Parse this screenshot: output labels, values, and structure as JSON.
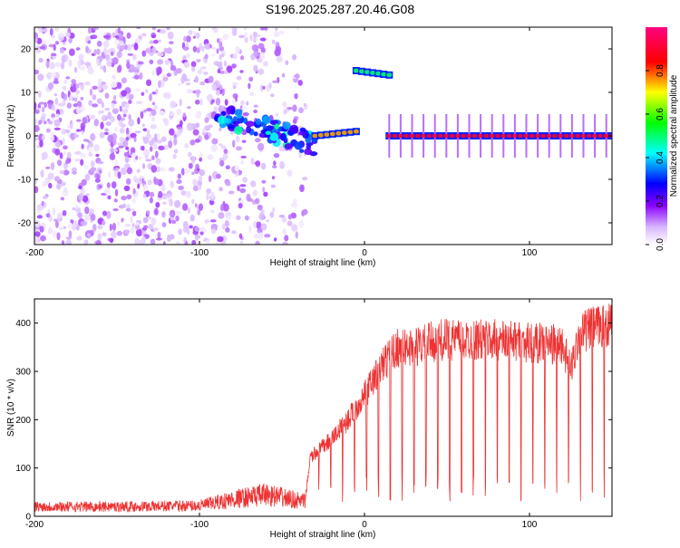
{
  "title": "S196.2025.287.20.46.G08",
  "chart_data": [
    {
      "type": "heatmap",
      "title": "S196.2025.287.20.46.G08",
      "xlabel": "Height of straight line (km)",
      "ylabel": "Frequency (Hz)",
      "xlim": [
        -200,
        150
      ],
      "ylim": [
        -25,
        25
      ],
      "x_ticks": [
        -200,
        -100,
        0,
        100
      ],
      "x_tick_labels": [
        "-200",
        "-100",
        "0",
        "100"
      ],
      "y_ticks": [
        -20,
        -10,
        0,
        10,
        20
      ],
      "y_tick_labels": [
        "-20",
        "-10",
        "0",
        "10",
        "20"
      ],
      "colorbar": {
        "label": "Normalized spectral amplitude",
        "range": [
          0,
          1
        ],
        "ticks": [
          0.0,
          0.2,
          0.4,
          0.6,
          0.8
        ],
        "tick_labels": [
          "0.0",
          "0.2",
          "0.4",
          "0.6",
          "0.8"
        ],
        "colormap": [
          "#ffffff",
          "#8a00ff",
          "#0000ff",
          "#00ffff",
          "#00ff00",
          "#ffff00",
          "#ff0000",
          "#ff0080"
        ]
      },
      "features": [
        {
          "name": "noise",
          "x": [
            -200,
            -35
          ],
          "freq": [
            -25,
            25
          ],
          "amplitude": [
            0.02,
            0.15
          ]
        },
        {
          "name": "rising-tone",
          "x": [
            -90,
            -30
          ],
          "freq": [
            5,
            -2
          ],
          "amplitude": [
            0.2,
            0.35
          ]
        },
        {
          "name": "segment-1",
          "x": [
            -30,
            -5
          ],
          "freq": [
            0,
            1
          ],
          "amplitude": 0.75
        },
        {
          "name": "segment-2",
          "x": [
            -5,
            15
          ],
          "freq": [
            15,
            14
          ],
          "amplitude": 0.5
        },
        {
          "name": "steady-tone",
          "x": [
            15,
            150
          ],
          "freq": [
            0,
            0
          ],
          "amplitude": 0.9
        }
      ]
    },
    {
      "type": "line",
      "xlabel": "Height of straight line (km)",
      "ylabel": "SNR (10 * v/v)",
      "xlim": [
        -200,
        150
      ],
      "ylim": [
        0,
        450
      ],
      "x_ticks": [
        -200,
        -100,
        0,
        100
      ],
      "x_tick_labels": [
        "-200",
        "-100",
        "0",
        "100"
      ],
      "y_ticks": [
        0,
        100,
        200,
        300,
        400
      ],
      "y_tick_labels": [
        "0",
        "100",
        "200",
        "300",
        "400"
      ],
      "color": "#ee3333",
      "x": [
        -200,
        -150,
        -100,
        -80,
        -60,
        -36,
        -33,
        -20,
        -10,
        0,
        10,
        20,
        30,
        45,
        60,
        80,
        100,
        120,
        125,
        130,
        140,
        150
      ],
      "y": [
        20,
        20,
        22,
        35,
        45,
        30,
        120,
        160,
        200,
        250,
        310,
        350,
        350,
        365,
        365,
        365,
        360,
        355,
        300,
        380,
        390,
        400
      ],
      "series_note": "envelope with periodic dropouts every ~7 km after x=-35"
    }
  ]
}
